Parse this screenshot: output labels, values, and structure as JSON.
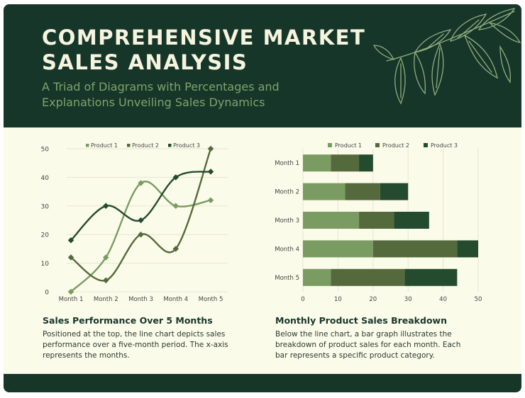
{
  "header": {
    "title": "COMPREHENSIVE MARKET SALES ANALYSIS",
    "subtitle": "A Triad of Diagrams with Percentages and Explanations Unveiling Sales Dynamics"
  },
  "colors": {
    "header_bg": "#17362a",
    "panel_bg": "#fbfbe9",
    "product1": "#7a9c62",
    "product2": "#546a3c",
    "product3": "#244b2e"
  },
  "sections": {
    "line": {
      "title": "Sales Performance Over 5 Months",
      "desc": "Positioned at the top, the line chart depicts sales performance over a five-month period. The x-axis represents the months."
    },
    "bar": {
      "title": "Monthly Product Sales Breakdown",
      "desc": "Below the line chart, a bar graph illustrates the breakdown of product sales for each month. Each bar represents a specific product category."
    }
  },
  "chart_data": [
    {
      "type": "line",
      "categories": [
        "Month 1",
        "Month 2",
        "Month 3",
        "Month 4",
        "Month 5"
      ],
      "series": [
        {
          "name": "Product 1",
          "values": [
            0,
            12,
            38,
            30,
            32
          ]
        },
        {
          "name": "Product 2",
          "values": [
            12,
            4,
            20,
            15,
            50
          ]
        },
        {
          "name": "Product 3",
          "values": [
            18,
            30,
            25,
            40,
            42
          ]
        }
      ],
      "ylim": [
        0,
        50
      ],
      "yticks": [
        "0",
        "10",
        "20",
        "30",
        "40",
        "50"
      ],
      "smooth": true,
      "legend": "top",
      "grid": true
    },
    {
      "type": "bar",
      "orientation": "horizontal",
      "stacked": true,
      "categories": [
        "Month 1",
        "Month 2",
        "Month 3",
        "Month 4",
        "Month 5"
      ],
      "series": [
        {
          "name": "Product 1",
          "values": [
            8,
            12,
            16,
            20,
            8
          ]
        },
        {
          "name": "Product 2",
          "values": [
            8,
            10,
            10,
            24,
            21
          ]
        },
        {
          "name": "Product 3",
          "values": [
            4,
            8,
            10,
            6,
            15
          ]
        }
      ],
      "xlim": [
        0,
        50
      ],
      "xticks": [
        "0",
        "10",
        "20",
        "30",
        "40",
        "50"
      ],
      "legend": "top",
      "grid": true
    }
  ]
}
